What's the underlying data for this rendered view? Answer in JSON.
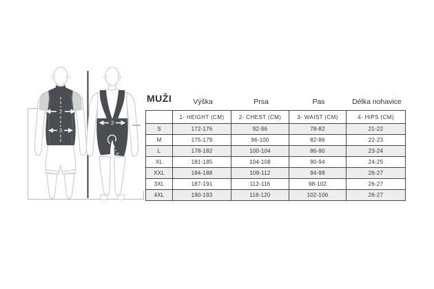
{
  "title": "MUŽI",
  "table": {
    "columns": [
      {
        "label": "Výška",
        "sub": "1- HEIGHT (CM)"
      },
      {
        "label": "Prsa",
        "sub": "2- CHEST (CM)"
      },
      {
        "label": "Pas",
        "sub": "3- WAIST (CM)"
      },
      {
        "label": "Délka nohavice",
        "sub": "4- HIPS (CM)"
      }
    ],
    "rows": [
      {
        "size": "S",
        "values": [
          "172-176",
          "92-96",
          "78-82",
          "21-22"
        ]
      },
      {
        "size": "M",
        "values": [
          "175-179",
          "96-100",
          "82-86",
          "22-23"
        ]
      },
      {
        "size": "L",
        "values": [
          "178-182",
          "100-104",
          "86-90",
          "23-24"
        ]
      },
      {
        "size": "XL",
        "values": [
          "181-185",
          "104-108",
          "90-94",
          "24-25"
        ]
      },
      {
        "size": "XXL",
        "values": [
          "184-188",
          "108-112",
          "94-98",
          "26-27"
        ]
      },
      {
        "size": "3XL",
        "values": [
          "187-191",
          "112-116",
          "98-102",
          "26-27"
        ]
      },
      {
        "size": "4XL",
        "values": [
          "190-193",
          "116-120",
          "102-106",
          "26-27"
        ]
      }
    ]
  },
  "figures": {
    "markers": {
      "height": "1",
      "chest": "2",
      "waist_front": "3",
      "waist_back": "3",
      "inseam": "4"
    }
  },
  "colors": {
    "garment_dark": "#4a4d51",
    "body_outline": "#c6c6c6",
    "sleeve_fill": "#d2d2d2",
    "marker_white": "#efefef",
    "row_alt_bg": "#ededed",
    "table_border": "#474747",
    "height_line": "#3f3f3f",
    "bracket": "#b8b8b8",
    "text": "#2f2f2f"
  }
}
